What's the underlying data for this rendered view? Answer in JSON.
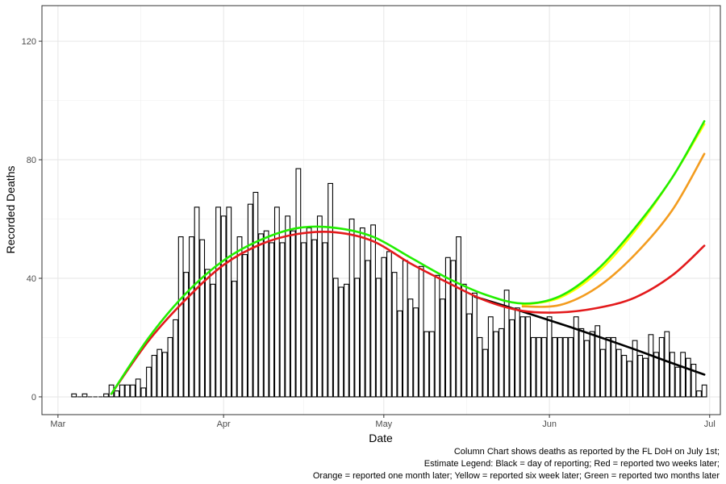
{
  "chart_data": {
    "type": "bar",
    "overlay_type": "line",
    "xlabel": "Date",
    "ylabel": "Recorded Deaths",
    "x_ticks": [
      "Mar",
      "Apr",
      "May",
      "Jun",
      "Jul"
    ],
    "x_tick_dates": [
      "2020-03-01",
      "2020-04-01",
      "2020-05-01",
      "2020-06-01",
      "2020-07-01"
    ],
    "xlim": [
      "2020-02-27",
      "2020-07-03"
    ],
    "y_ticks": [
      0,
      40,
      80,
      120
    ],
    "ylim": [
      -6,
      132
    ],
    "grid": true,
    "bar_dates": [
      "2020-03-04",
      "2020-03-05",
      "2020-03-06",
      "2020-03-07",
      "2020-03-08",
      "2020-03-09",
      "2020-03-10",
      "2020-03-11",
      "2020-03-12",
      "2020-03-13",
      "2020-03-14",
      "2020-03-15",
      "2020-03-16",
      "2020-03-17",
      "2020-03-18",
      "2020-03-19",
      "2020-03-20",
      "2020-03-21",
      "2020-03-22",
      "2020-03-23",
      "2020-03-24",
      "2020-03-25",
      "2020-03-26",
      "2020-03-27",
      "2020-03-28",
      "2020-03-29",
      "2020-03-30",
      "2020-03-31",
      "2020-04-01",
      "2020-04-02",
      "2020-04-03",
      "2020-04-04",
      "2020-04-05",
      "2020-04-06",
      "2020-04-07",
      "2020-04-08",
      "2020-04-09",
      "2020-04-10",
      "2020-04-11",
      "2020-04-12",
      "2020-04-13",
      "2020-04-14",
      "2020-04-15",
      "2020-04-16",
      "2020-04-17",
      "2020-04-18",
      "2020-04-19",
      "2020-04-20",
      "2020-04-21",
      "2020-04-22",
      "2020-04-23",
      "2020-04-24",
      "2020-04-25",
      "2020-04-26",
      "2020-04-27",
      "2020-04-28",
      "2020-04-29",
      "2020-04-30",
      "2020-05-01",
      "2020-05-02",
      "2020-05-03",
      "2020-05-04",
      "2020-05-05",
      "2020-05-06",
      "2020-05-07",
      "2020-05-08",
      "2020-05-09",
      "2020-05-10",
      "2020-05-11",
      "2020-05-12",
      "2020-05-13",
      "2020-05-14",
      "2020-05-15",
      "2020-05-16",
      "2020-05-17",
      "2020-05-18",
      "2020-05-19",
      "2020-05-20",
      "2020-05-21",
      "2020-05-22",
      "2020-05-23",
      "2020-05-24",
      "2020-05-25",
      "2020-05-26",
      "2020-05-27",
      "2020-05-28",
      "2020-05-29",
      "2020-05-30",
      "2020-05-31",
      "2020-06-01",
      "2020-06-02",
      "2020-06-03",
      "2020-06-04",
      "2020-06-05",
      "2020-06-06",
      "2020-06-07",
      "2020-06-08",
      "2020-06-09",
      "2020-06-10",
      "2020-06-11",
      "2020-06-12",
      "2020-06-13",
      "2020-06-14",
      "2020-06-15",
      "2020-06-16",
      "2020-06-17",
      "2020-06-18",
      "2020-06-19",
      "2020-06-20",
      "2020-06-21",
      "2020-06-22",
      "2020-06-23",
      "2020-06-24",
      "2020-06-25",
      "2020-06-26",
      "2020-06-27",
      "2020-06-28",
      "2020-06-29",
      "2020-06-30"
    ],
    "bar_values": [
      1,
      0,
      1,
      0,
      0,
      0,
      1,
      4,
      2,
      4,
      4,
      4,
      6,
      3,
      10,
      14,
      16,
      15,
      20,
      26,
      54,
      42,
      54,
      64,
      53,
      43,
      38,
      64,
      61,
      64,
      39,
      54,
      48,
      65,
      69,
      55,
      56,
      52,
      64,
      52,
      61,
      56,
      77,
      52,
      57,
      53,
      61,
      52,
      72,
      40,
      37,
      38,
      60,
      40,
      57,
      46,
      58,
      40,
      47,
      49,
      42,
      29,
      46,
      33,
      30,
      44,
      22,
      22,
      41,
      33,
      47,
      46,
      54,
      38,
      28,
      35,
      20,
      16,
      27,
      22,
      23,
      36,
      26,
      30,
      27,
      27,
      20,
      20,
      20,
      27,
      20,
      20,
      20,
      20,
      27,
      23,
      19,
      22,
      24,
      16,
      20,
      20,
      16,
      14,
      12,
      19,
      14,
      13,
      21,
      15,
      20,
      22,
      15,
      10,
      15,
      13,
      11,
      2,
      4,
      1
    ],
    "series": [
      {
        "name": "Black = day of reporting",
        "color": "#000000",
        "x": [
          "2020-05-18",
          "2020-05-24",
          "2020-05-30",
          "2020-06-05",
          "2020-06-11",
          "2020-06-17",
          "2020-06-23",
          "2020-06-30"
        ],
        "y": [
          33.8,
          30.5,
          27,
          23.5,
          19.8,
          16,
          12,
          7.5
        ]
      },
      {
        "name": "Red = reported two weeks later",
        "color": "#e31a1c",
        "x": [
          "2020-03-11",
          "2020-03-18",
          "2020-03-25",
          "2020-04-01",
          "2020-04-08",
          "2020-04-15",
          "2020-04-22",
          "2020-04-29",
          "2020-05-06",
          "2020-05-13",
          "2020-05-20",
          "2020-05-27",
          "2020-06-03",
          "2020-06-10",
          "2020-06-17",
          "2020-06-24",
          "2020-06-30"
        ],
        "y": [
          1,
          19,
          33,
          44.5,
          51.5,
          55,
          55.5,
          52.5,
          45,
          38.5,
          32.5,
          29,
          28.5,
          30,
          33.5,
          41,
          51
        ]
      },
      {
        "name": "Orange = reported one month later",
        "color": "#f39c1f",
        "x": [
          "2020-05-27",
          "2020-06-03",
          "2020-06-10",
          "2020-06-17",
          "2020-06-24",
          "2020-06-30"
        ],
        "y": [
          30.5,
          31,
          37,
          48,
          63,
          82
        ]
      },
      {
        "name": "Yellow = reported six week later",
        "color": "#ffff00",
        "x": [
          "2020-05-27",
          "2020-06-03",
          "2020-06-10",
          "2020-06-17",
          "2020-06-24",
          "2020-06-30"
        ],
        "y": [
          31,
          33.5,
          42,
          56,
          74,
          92
        ]
      },
      {
        "name": "Green = reported two months later",
        "color": "#22ee00",
        "x": [
          "2020-03-11",
          "2020-03-18",
          "2020-03-25",
          "2020-04-01",
          "2020-04-08",
          "2020-04-15",
          "2020-04-22",
          "2020-04-29",
          "2020-05-06",
          "2020-05-13",
          "2020-05-20",
          "2020-05-27",
          "2020-06-03",
          "2020-06-10",
          "2020-06-17",
          "2020-06-24",
          "2020-06-30"
        ],
        "y": [
          1,
          20,
          35,
          46,
          53,
          57,
          57,
          54,
          47,
          40,
          34.5,
          31.5,
          34,
          43,
          57,
          74,
          93
        ]
      }
    ]
  },
  "caption": {
    "line1": "Column Chart shows deaths as reported by the FL DoH on July 1st;",
    "line2": "Estimate Legend: Black = day of reporting; Red = reported two weeks later;",
    "line3": "Orange = reported one month later; Yellow = reported six week later; Green  = reported two months later"
  }
}
